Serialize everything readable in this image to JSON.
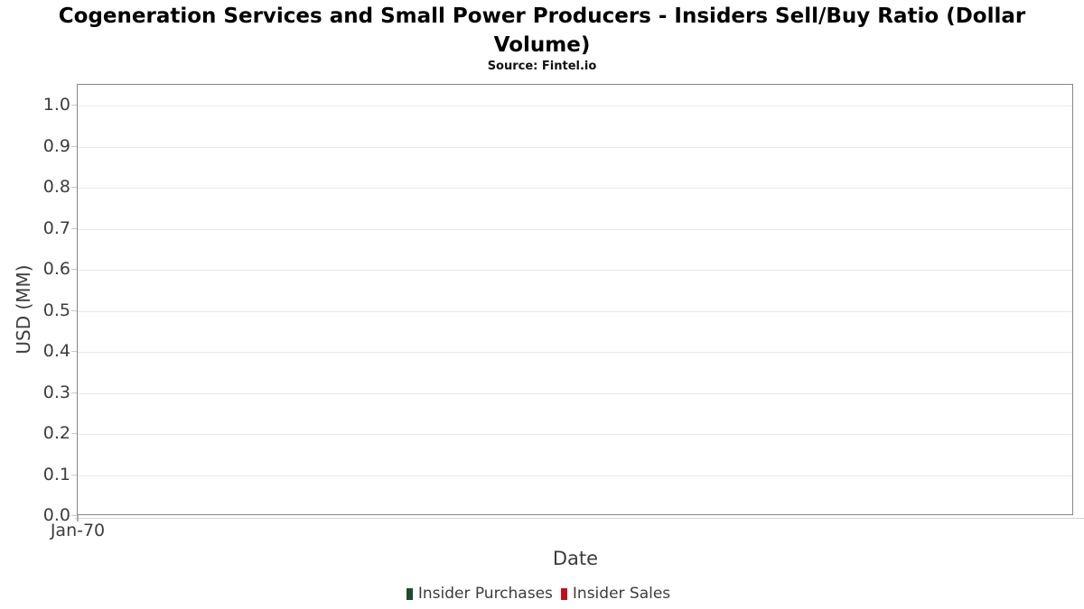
{
  "chart": {
    "title": "Cogeneration Services and Small Power Producers - Insiders Sell/Buy Ratio (Dollar Volume)",
    "title_lines": [
      "Cogeneration Services and Small Power Producers - Insiders Sell/Buy Ratio (Dollar",
      "Volume)"
    ],
    "subtitle": "Source: Fintel.io"
  },
  "chart_data": {
    "type": "bar",
    "title": "Cogeneration Services and Small Power Producers - Insiders Sell/Buy Ratio (Dollar Volume)",
    "subtitle": "Source: Fintel.io",
    "xlabel": "Date",
    "ylabel": "USD (MM)",
    "categories": [
      "Jan-70"
    ],
    "xticks": [
      "Jan-70"
    ],
    "yticks": [
      0.0,
      0.1,
      0.2,
      0.3,
      0.4,
      0.5,
      0.6,
      0.7,
      0.8,
      0.9,
      1.0
    ],
    "ylim": [
      0.0,
      1.05
    ],
    "grid": "horizontal",
    "legend_position": "bottom",
    "series": [
      {
        "name": "Insider Purchases",
        "color": "#1d4b2c",
        "values": []
      },
      {
        "name": "Insider Sales",
        "color": "#c01020",
        "values": []
      }
    ],
    "colors": {
      "plot_border": "#868686",
      "gridline": "#e8e8e8",
      "tick": "#c9c9c9",
      "text": "#3d3d3d",
      "title_text": "#000000"
    }
  }
}
